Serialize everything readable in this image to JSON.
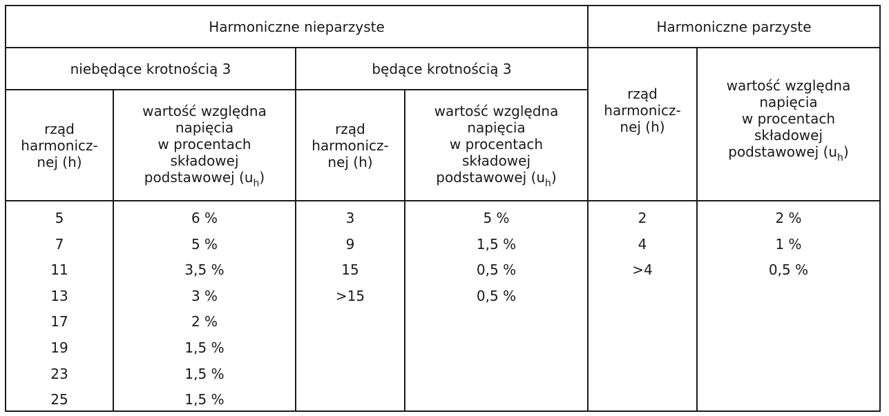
{
  "headers": {
    "odd": "Harmoniczne nieparzyste",
    "even": "Harmoniczne parzyste",
    "non_multiple_3": "niebędące krotnością 3",
    "multiple_3": "będące krotnością 3",
    "order_line1": "rząd",
    "order_line2": "harmonicz-",
    "order_line3": "nej (h)",
    "value_line1": "wartość względna",
    "value_line2": "napięcia",
    "value_line3": "w procentach",
    "value_line4": "składowej",
    "value_line5": "podstawowej (u",
    "value_sub": "h",
    "value_close": ")"
  },
  "non_multiple_3": {
    "orders": [
      "5",
      "7",
      "11",
      "13",
      "17",
      "19",
      "23",
      "25"
    ],
    "values": [
      "6 %",
      "5 %",
      "3,5 %",
      "3 %",
      "2 %",
      "1,5 %",
      "1,5 %",
      "1,5 %"
    ]
  },
  "multiple_3": {
    "orders": [
      "3",
      "9",
      "15",
      ">15"
    ],
    "values": [
      "5 %",
      "1,5 %",
      "0,5 %",
      "0,5 %"
    ]
  },
  "even": {
    "orders": [
      "2",
      "4",
      ">4"
    ],
    "values": [
      "2 %",
      "1 %",
      "0,5 %"
    ]
  }
}
